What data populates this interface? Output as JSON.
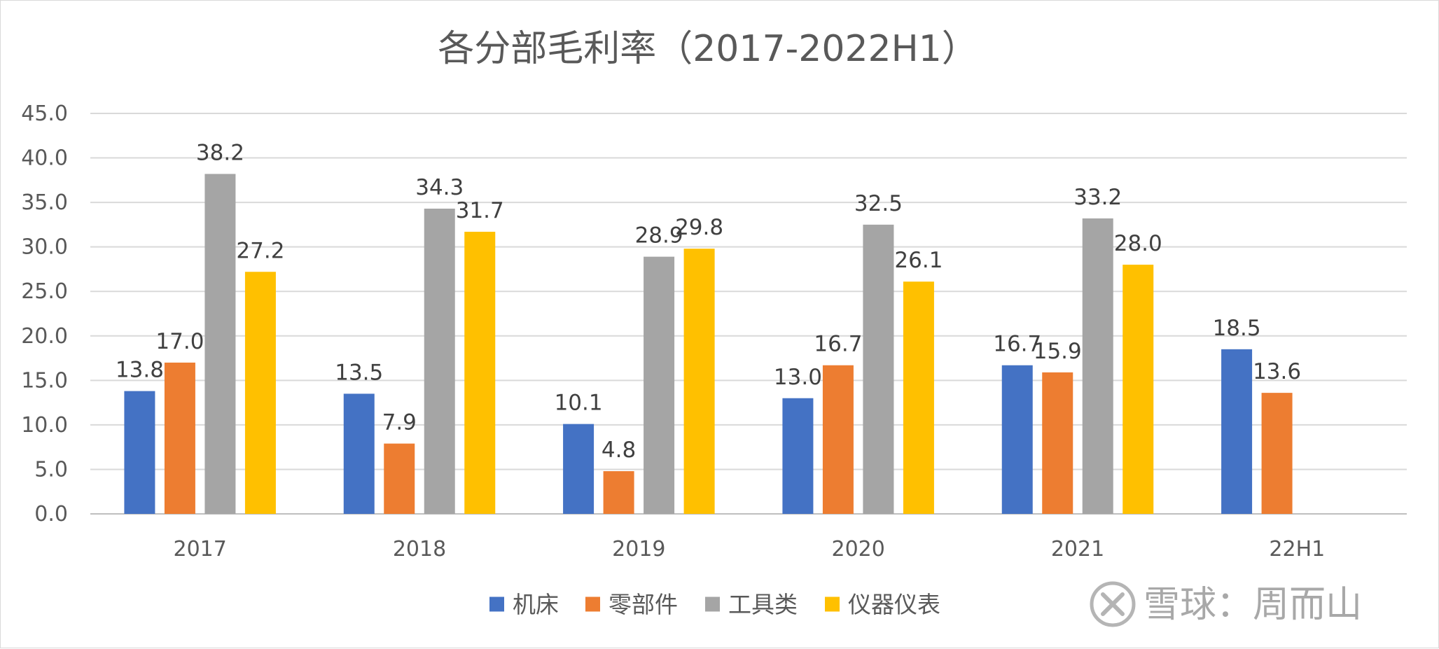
{
  "chart_data": {
    "type": "bar",
    "title": "各分部毛利率（2017-2022H1）",
    "categories": [
      "2017",
      "2018",
      "2019",
      "2020",
      "2021",
      "22H1"
    ],
    "series": [
      {
        "name": "机床",
        "color": "#4472C4",
        "values": [
          13.8,
          13.5,
          10.1,
          13.0,
          16.7,
          18.5
        ]
      },
      {
        "name": "零部件",
        "color": "#ED7D31",
        "values": [
          17.0,
          7.9,
          4.8,
          16.7,
          15.9,
          13.6
        ]
      },
      {
        "name": "工具类",
        "color": "#A5A5A5",
        "values": [
          38.2,
          34.3,
          28.9,
          32.5,
          33.2,
          null
        ]
      },
      {
        "name": "仪器仪表",
        "color": "#FFC000",
        "values": [
          27.2,
          31.7,
          29.8,
          26.1,
          28.0,
          null
        ]
      }
    ],
    "ylim": [
      0,
      45
    ],
    "yticks": [
      "0.0",
      "5.0",
      "10.0",
      "15.0",
      "20.0",
      "25.0",
      "30.0",
      "35.0",
      "40.0",
      "45.0"
    ],
    "grid": true,
    "legend": "bottom"
  },
  "watermark": {
    "text": "雪球：周而山",
    "icon": "xueqiu-logo-icon"
  }
}
